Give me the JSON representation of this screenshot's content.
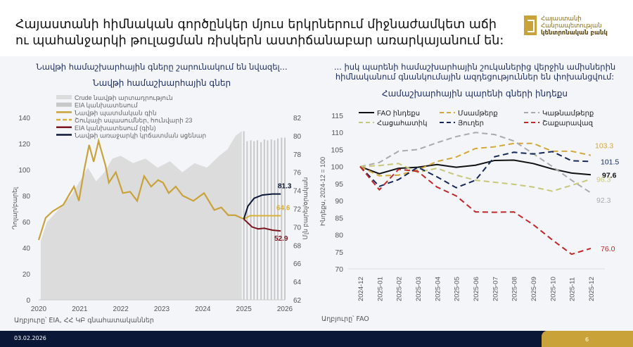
{
  "header": {
    "title": "Հայաստանի հիմնական գործընկեր մյուս երկրներում միջնաժամկետ աճի ու պահանջարկի թուլացման ռիսկերն աստիճանաբար առարկայանում են:",
    "logo": {
      "line1": "Հայաստանի",
      "line2": "Հանրապետության",
      "line3": "կենտրոնական բանկ"
    }
  },
  "left": {
    "subtitle": "Նավթի համաշխարհային գները շարունակում են նվազել...",
    "source": "Աղբյուրը՝ EIA, ՀՀ ԿԲ գնահատականներ"
  },
  "right": {
    "subtitle": "... իսկ պարենի համաշխարհային շուկաներից վերջին ամիսներին հիմնականում գնանկումային ազդեցություններ են փոխանցվում:",
    "source": "Աղբյուրը՝ FAO"
  },
  "footer": {
    "date": "03.02.2026",
    "page": "6"
  },
  "chart_data": [
    {
      "type": "line",
      "title": "Նավթի համաշխարհային գներ",
      "ylabel": "Դոլար/բարել",
      "y2label": "Մլն բարել/օրական",
      "ylim": [
        0,
        140
      ],
      "y2lim": [
        62,
        82
      ],
      "yticks": [
        0,
        20,
        40,
        60,
        80,
        100,
        120,
        140
      ],
      "y2ticks": [
        62,
        64,
        66,
        68,
        70,
        72,
        74,
        76,
        78,
        80,
        82
      ],
      "xticks": [
        "2020",
        "2021",
        "2022",
        "2023",
        "2024",
        "2025",
        "2026"
      ],
      "xlim": [
        2020,
        2026
      ],
      "legend": [
        "Crude նավթի արտադրություն",
        "EIA կանխատեսում",
        "Նավթի պատմական գին",
        "Շուկայի սպասումներ, հունվարի 23",
        "EIA կանխատեսում (գին)",
        "Նավթի առաջարկի կրճատման սցենար"
      ],
      "colors": {
        "production": "#dcdcdc",
        "forecast_bars": "#c8c8c8",
        "price": "#c9a23a",
        "market": "#d9b13a",
        "eia": "#7a1520",
        "supply": "#0b1736"
      },
      "production": {
        "x": [
          2020.05,
          2020.2,
          2020.5,
          2020.8,
          2021.0,
          2021.2,
          2021.4,
          2021.6,
          2021.8,
          2022.0,
          2022.3,
          2022.6,
          2022.9,
          2023.2,
          2023.5,
          2023.8,
          2024.1,
          2024.4,
          2024.6,
          2024.8,
          2024.95
        ],
        "y": [
          68.5,
          70.5,
          72,
          73.5,
          75,
          76.5,
          75,
          76,
          77.5,
          77.8,
          77,
          77.5,
          76.5,
          77.2,
          76,
          77,
          76.5,
          77.8,
          78.5,
          80,
          80.5
        ]
      },
      "production_forecast": {
        "x": [
          2025.0,
          2025.08,
          2025.17,
          2025.25,
          2025.33,
          2025.42,
          2025.5,
          2025.58,
          2025.67,
          2025.75,
          2025.83,
          2025.92,
          2026.0
        ],
        "y": [
          80.5,
          79.4,
          79.5,
          79.4,
          79.5,
          79.3,
          79.6,
          79.5,
          79.6,
          79.5,
          79.7,
          79.8,
          79.8
        ]
      },
      "price": {
        "x": [
          2020,
          2020.17,
          2020.34,
          2020.6,
          2020.86,
          2020.98,
          2021.11,
          2021.23,
          2021.34,
          2021.46,
          2021.63,
          2021.71,
          2021.88,
          2022.05,
          2022.23,
          2022.4,
          2022.57,
          2022.74,
          2022.91,
          2023.03,
          2023.17,
          2023.34,
          2023.51,
          2023.77,
          2024.03,
          2024.28,
          2024.45,
          2024.62,
          2024.79,
          2025.0
        ],
        "y": [
          46,
          63,
          68,
          73,
          87,
          76,
          100,
          119,
          106,
          122,
          103,
          90,
          98,
          82,
          83,
          76,
          95,
          87,
          92,
          90,
          82,
          87,
          80,
          76,
          82,
          69,
          71,
          65,
          65,
          62
        ]
      },
      "market": {
        "x": [
          2025.0,
          2025.15,
          2025.9
        ],
        "y": [
          62,
          64.6,
          64.6
        ],
        "label": "64.6"
      },
      "eia": {
        "x": [
          2025.0,
          2025.2,
          2025.35,
          2025.5,
          2025.7,
          2025.9
        ],
        "y": [
          62,
          56,
          54.5,
          55,
          53.5,
          52.9
        ],
        "label": "52.9"
      },
      "supply": {
        "x": [
          2025.0,
          2025.1,
          2025.25,
          2025.45,
          2025.7,
          2025.9
        ],
        "y": [
          62,
          72,
          78,
          80.5,
          81.3,
          81.3
        ],
        "label": "81.3"
      }
    },
    {
      "type": "line",
      "title": "Համաշխարհային պարենի գների ինդեքս",
      "ylabel": "Ինդեքս, 2024-12 = 100",
      "ylim": [
        70,
        115
      ],
      "yticks": [
        70,
        75,
        80,
        85,
        90,
        95,
        100,
        105,
        110,
        115
      ],
      "categories": [
        "2024-12",
        "2025-01",
        "2025-02",
        "2025-03",
        "2025-04",
        "2025-05",
        "2025-06",
        "2025-07",
        "2025-08",
        "2025-09",
        "2025-10",
        "2025-11",
        "2025-12"
      ],
      "series": [
        {
          "name": "FAO ինդեքս",
          "color": "#111111",
          "dash": false,
          "values": [
            100,
            97.9,
            99.5,
            99.8,
            100.6,
            99.8,
            100.4,
            101.8,
            101.9,
            100.9,
            99.3,
            98.1,
            97.6
          ],
          "label": "97.6"
        },
        {
          "name": "Մսամթերք",
          "color": "#d4a73a",
          "dash": true,
          "values": [
            100,
            97.3,
            97.5,
            99.0,
            101.5,
            102.8,
            105.3,
            105.8,
            106.8,
            106.8,
            104.5,
            104.5,
            103.3
          ],
          "label": "103.3"
        },
        {
          "name": "Կաթնամթերք",
          "color": "#aaaaaa",
          "dash": true,
          "values": [
            100,
            101.2,
            104.5,
            105.0,
            107.0,
            108.8,
            110.0,
            109.4,
            107.5,
            103.8,
            100.0,
            96.0,
            92.3
          ],
          "label": "92.3"
        },
        {
          "name": "Հացահատիկ",
          "color": "#c9c77a",
          "dash": true,
          "values": [
            100,
            100.3,
            100.9,
            98.3,
            99.5,
            97.5,
            96.0,
            95.4,
            94.8,
            94.0,
            92.8,
            94.5,
            96.3
          ],
          "label": "96.3"
        },
        {
          "name": "Յուղեր",
          "color": "#14285a",
          "dash": true,
          "values": [
            100,
            94.2,
            96.2,
            99.8,
            97.0,
            93.8,
            96.0,
            102.9,
            104.2,
            103.7,
            104.4,
            101.7,
            101.5
          ],
          "label": "101.5"
        },
        {
          "name": "Շաքարավազ",
          "color": "#c0282a",
          "dash": true,
          "values": [
            100,
            93.2,
            99.2,
            98.6,
            94.0,
            91.4,
            86.7,
            86.6,
            86.7,
            83.0,
            78.5,
            74.3,
            76.0
          ],
          "label": "76.0"
        }
      ]
    }
  ]
}
